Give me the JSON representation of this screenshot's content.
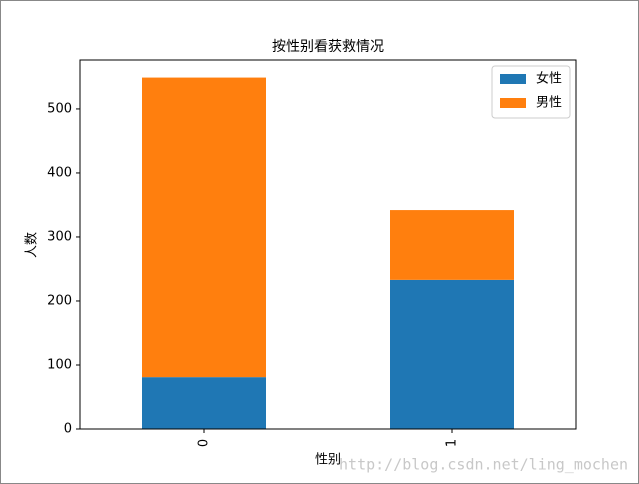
{
  "chart_data": {
    "type": "stacked_bar",
    "title": "按性别看获救情况",
    "x_label": "性别",
    "y_label": "人数",
    "categories": [
      "0",
      "1"
    ],
    "series": [
      {
        "name": "女性",
        "color": "#1f77b4",
        "values": [
          81,
          233
        ]
      },
      {
        "name": "男性",
        "color": "#ff7f0e",
        "values": [
          468,
          109
        ]
      }
    ],
    "ylim": [
      0,
      576.45
    ],
    "yticks": [
      0,
      100,
      200,
      300,
      400,
      500
    ],
    "legend": "upper right",
    "watermark": "http://blog.csdn.net/ling_mochen"
  }
}
